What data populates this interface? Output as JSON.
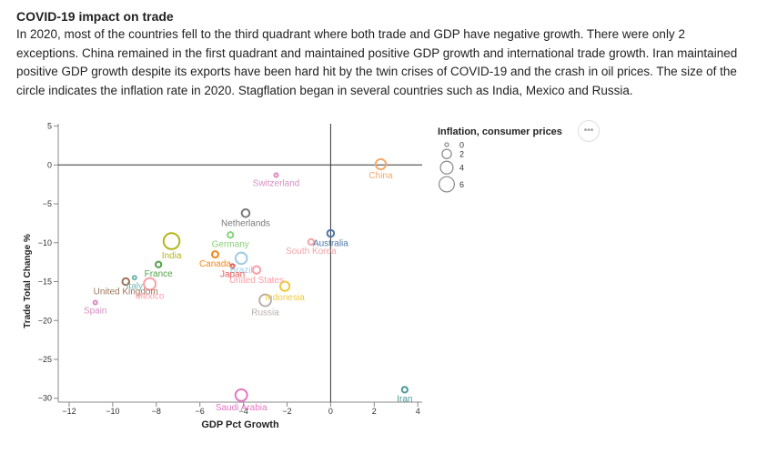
{
  "header": {
    "title": "COVID-19 impact on trade",
    "description": "In 2020, most of the countries fell to the third quadrant where both trade and GDP have negative growth. There were only 2 exceptions. China remained in the first quadrant and maintained positive GDP growth and international trade growth. Iran maintained positive GDP growth despite its exports have been hard hit by the twin crises of COVID-19 and the crash in oil prices. The size of the circle indicates the inflation rate in 2020. Stagflation began in several countries such as India, Mexico and Russia."
  },
  "menu_label": "•••",
  "chart_data": {
    "type": "scatter",
    "xlabel": "GDP Pct Growth",
    "ylabel": "Trade Total Change %",
    "xlim": [
      -12.5,
      4.2
    ],
    "ylim": [
      -30.5,
      5.3
    ],
    "x_ticks": [
      -12,
      -10,
      -8,
      -6,
      -4,
      -2,
      0,
      2,
      4
    ],
    "y_ticks": [
      5,
      0,
      -5,
      -10,
      -15,
      -20,
      -25,
      -30
    ],
    "grid": false,
    "reference_lines": {
      "x": 0,
      "y": 0
    },
    "size_field": "Inflation, consumer prices",
    "legend": {
      "title": "Inflation, consumer prices",
      "values": [
        0,
        2,
        4,
        6
      ],
      "placement": "right"
    },
    "points": [
      {
        "label": "China",
        "x": 2.3,
        "y": 0.1,
        "inflation": 2.5,
        "color": "#f3a96a"
      },
      {
        "label": "Switzerland",
        "x": -2.5,
        "y": -1.3,
        "inflation": 0,
        "color": "#d88fc3"
      },
      {
        "label": "Netherlands",
        "x": -3.9,
        "y": -6.2,
        "inflation": 1.3,
        "color": "#7a7a7a"
      },
      {
        "label": "Australia",
        "x": 0.0,
        "y": -8.8,
        "inflation": 0.9,
        "color": "#4c78a8"
      },
      {
        "label": "South Korea",
        "x": -0.9,
        "y": -9.9,
        "inflation": 0.5,
        "color": "#f4a3a8"
      },
      {
        "label": "India",
        "x": -7.3,
        "y": -9.8,
        "inflation": 6.6,
        "color": "#b5b51f"
      },
      {
        "label": "Germany",
        "x": -4.6,
        "y": -9.0,
        "inflation": 0.5,
        "color": "#88d27a"
      },
      {
        "label": "Canada",
        "x": -5.3,
        "y": -11.5,
        "inflation": 0.7,
        "color": "#f58518"
      },
      {
        "label": "Brazil",
        "x": -4.1,
        "y": -12.0,
        "inflation": 3.2,
        "color": "#9ecae9"
      },
      {
        "label": "Japan",
        "x": -4.5,
        "y": -13.0,
        "inflation": 0.0,
        "color": "#e45756"
      },
      {
        "label": "France",
        "x": -7.9,
        "y": -12.8,
        "inflation": 0.5,
        "color": "#54a24b"
      },
      {
        "label": "United States",
        "x": -3.4,
        "y": -13.5,
        "inflation": 1.2,
        "color": "#ff9da6"
      },
      {
        "label": "Italy",
        "x": -9.0,
        "y": -14.5,
        "inflation": 0,
        "color": "#72b7b2"
      },
      {
        "label": "United Kingdom",
        "x": -9.4,
        "y": -15.0,
        "inflation": 0.9,
        "color": "#9d755d"
      },
      {
        "label": "Mexico",
        "x": -8.3,
        "y": -15.3,
        "inflation": 3.4,
        "color": "#ff9da6"
      },
      {
        "label": "Indonesia",
        "x": -2.1,
        "y": -15.6,
        "inflation": 2.0,
        "color": "#eeca3b"
      },
      {
        "label": "Russia",
        "x": -3.0,
        "y": -17.4,
        "inflation": 3.4,
        "color": "#bab0ac"
      },
      {
        "label": "Spain",
        "x": -10.8,
        "y": -17.7,
        "inflation": 0,
        "color": "#d88fc3"
      },
      {
        "label": "Saudi Arabia",
        "x": -4.1,
        "y": -29.6,
        "inflation": 3.4,
        "color": "#e377c2"
      },
      {
        "label": "Iran",
        "x": 3.4,
        "y": -28.9,
        "inflation": 0.5,
        "color": "#4c9a9a"
      }
    ]
  }
}
